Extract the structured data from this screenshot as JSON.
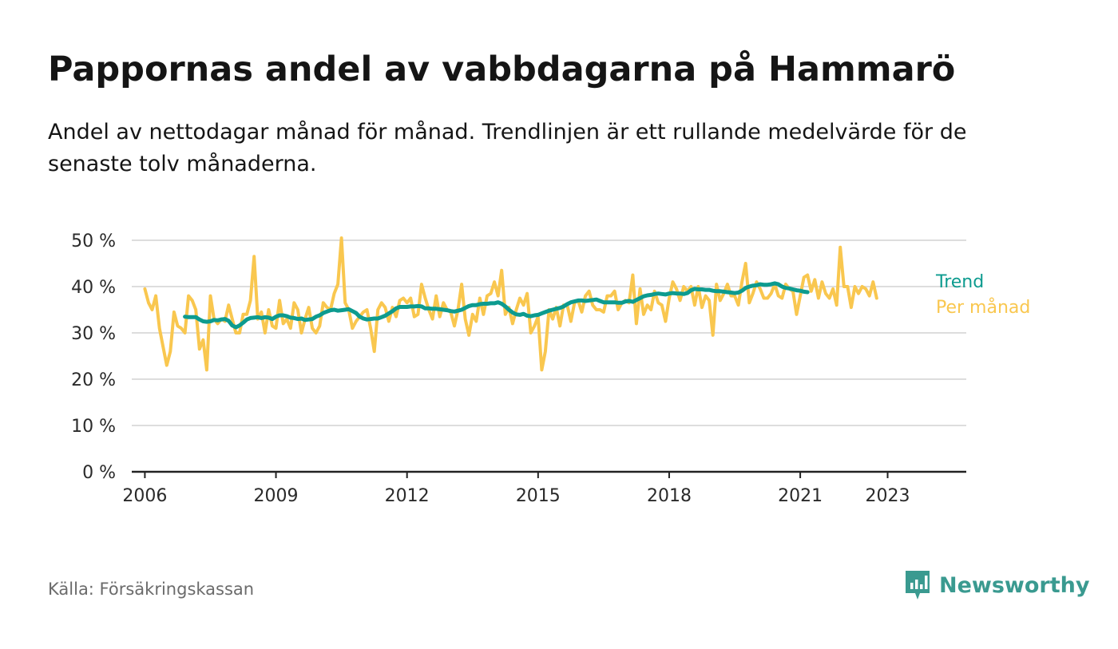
{
  "title": "Pappornas andel av vabbdagarna på Hammarö",
  "subtitle": "Andel av nettodagar månad för månad. Trendlinjen är ett rullande medelvärde för de senaste tolv månaderna.",
  "source": "Källa: Försäkringskassan",
  "brand": {
    "name": "Newsworthy",
    "icon": "newsworthy-logo-icon",
    "color": "#3a9a90"
  },
  "colors": {
    "trend": "#0d9b8f",
    "monthly": "#f9c74f",
    "grid": "#dddddd",
    "axis": "#222222"
  },
  "chart_data": {
    "type": "line",
    "title": "Pappornas andel av vabbdagarna på Hammarö",
    "xlabel": "",
    "ylabel": "",
    "xlim": [
      2005.7,
      2024.8
    ],
    "ylim": [
      0,
      50
    ],
    "y_ticks": [
      0,
      10,
      20,
      30,
      40,
      50
    ],
    "y_tick_labels": [
      "0 %",
      "10 %",
      "20 %",
      "30 %",
      "40 %",
      "50 %"
    ],
    "x_ticks": [
      2006,
      2009,
      2012,
      2015,
      2018,
      2021,
      2023
    ],
    "x_tick_labels": [
      "2006",
      "2009",
      "2012",
      "2015",
      "2018",
      "2021",
      "2023"
    ],
    "grid": true,
    "legend": "right, at end of lines",
    "series": [
      {
        "name": "Per månad",
        "color": "#f9c74f",
        "x_start": 2006.0,
        "x_step": 0.0833333,
        "values": [
          39.5,
          36.5,
          35,
          38,
          31,
          27,
          23,
          26,
          34.5,
          31.5,
          31,
          30,
          38,
          37,
          35,
          26.5,
          28.5,
          22,
          38,
          33,
          32,
          33,
          32.5,
          36,
          33,
          30,
          30,
          34,
          34,
          37,
          46.5,
          33,
          34.5,
          30,
          35,
          31.5,
          31,
          37,
          32,
          33,
          31,
          36.5,
          35,
          30,
          33,
          35.5,
          31,
          30,
          31.5,
          36.5,
          35.5,
          35,
          38.5,
          40.5,
          50.5,
          36.5,
          35,
          31,
          32.5,
          33.5,
          34.5,
          35,
          31,
          26,
          35,
          36.5,
          35.5,
          32.5,
          35.5,
          33.5,
          37,
          37.5,
          36.5,
          37.5,
          33.5,
          34,
          40.5,
          37.5,
          35,
          33,
          38,
          33.5,
          36.5,
          35,
          34.5,
          31.5,
          35,
          40.5,
          33,
          29.5,
          34,
          32.5,
          37.5,
          34,
          38,
          38.5,
          41,
          38,
          43.5,
          34,
          35.5,
          32,
          35,
          37.5,
          36,
          38.5,
          30,
          31.5,
          33.5,
          22,
          26,
          35,
          33,
          35.5,
          31.5,
          36,
          36,
          32.5,
          36.5,
          37,
          34.5,
          38,
          39,
          36,
          35,
          35,
          34.5,
          38,
          38,
          39,
          35,
          36.5,
          37,
          36.5,
          42.5,
          32,
          39.5,
          34,
          36,
          35,
          39,
          36.5,
          36,
          32.5,
          37.5,
          41,
          39.5,
          37,
          40,
          39,
          40,
          36,
          40,
          35.5,
          38,
          37,
          29.5,
          40.5,
          37,
          38.5,
          40.5,
          38,
          38,
          36,
          41,
          45,
          36.5,
          38.5,
          41,
          39.5,
          37.5,
          37.5,
          38.5,
          40.5,
          38,
          37.5,
          40.5,
          39.5,
          39,
          34,
          38,
          42,
          42.5,
          39,
          41.5,
          37.5,
          41,
          38.5,
          37.5,
          39.5,
          36,
          48.5,
          40,
          40,
          35.5,
          40,
          38.5,
          40,
          39.5,
          38,
          41,
          37.5
        ]
      },
      {
        "name": "Trend",
        "color": "#0d9b8f",
        "x_start": 2006.9167,
        "x_step": 0.0833333,
        "values": [
          33.5,
          33.4,
          33.4,
          33.4,
          32.9,
          32.5,
          32.4,
          32.5,
          32.8,
          32.7,
          32.9,
          33.0,
          32.6,
          31.6,
          31.2,
          31.6,
          32.2,
          32.9,
          33.2,
          33.3,
          33.4,
          33.2,
          33.4,
          33.3,
          33.0,
          33.5,
          33.8,
          33.8,
          33.6,
          33.3,
          33.2,
          33.0,
          33.1,
          32.8,
          32.9,
          33.0,
          33.5,
          33.8,
          34.3,
          34.6,
          34.9,
          35.0,
          34.8,
          34.9,
          35.0,
          35.1,
          34.7,
          34.3,
          33.5,
          33.1,
          32.9,
          33.0,
          33.1,
          33.1,
          33.4,
          33.7,
          34.2,
          34.7,
          35.3,
          35.6,
          35.6,
          35.6,
          35.7,
          35.7,
          35.8,
          35.7,
          35.3,
          35.3,
          35.2,
          35.2,
          35.1,
          35.0,
          34.9,
          34.7,
          34.6,
          34.8,
          35.0,
          35.4,
          35.8,
          36.0,
          36.0,
          36.2,
          36.3,
          36.3,
          36.4,
          36.4,
          36.6,
          36.3,
          35.7,
          35.0,
          34.4,
          34.0,
          33.9,
          34.1,
          33.7,
          33.6,
          33.8,
          33.9,
          34.2,
          34.5,
          34.8,
          35.0,
          35.2,
          35.4,
          35.7,
          36.2,
          36.6,
          36.8,
          37.0,
          37.0,
          36.9,
          37.0,
          37.1,
          37.2,
          36.9,
          36.6,
          36.6,
          36.6,
          36.6,
          36.5,
          36.5,
          36.8,
          36.9,
          36.7,
          37.1,
          37.5,
          37.9,
          38.1,
          38.2,
          38.4,
          38.5,
          38.4,
          38.3,
          38.5,
          38.6,
          38.5,
          38.5,
          38.4,
          38.6,
          39.2,
          39.5,
          39.4,
          39.4,
          39.3,
          39.3,
          39.1,
          39.0,
          39.0,
          38.9,
          38.8,
          38.7,
          38.6,
          38.7,
          39.1,
          39.7,
          40.0,
          40.2,
          40.3,
          40.5,
          40.4,
          40.4,
          40.5,
          40.7,
          40.5,
          40.0,
          39.7,
          39.6,
          39.4,
          39.2,
          39.1,
          38.9,
          38.8
        ]
      }
    ]
  }
}
